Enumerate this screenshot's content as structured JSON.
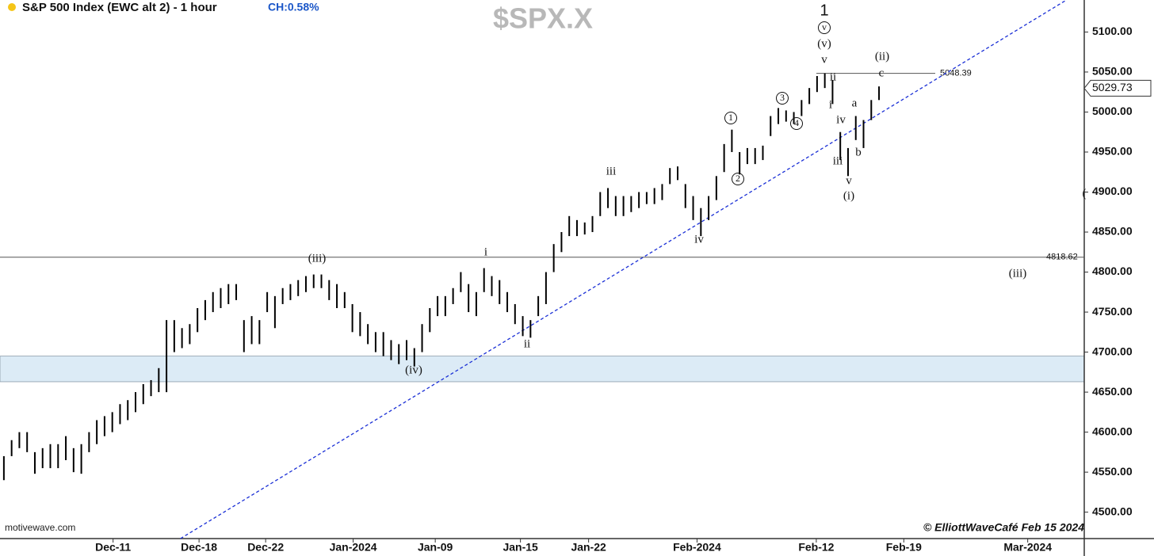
{
  "chart_data": {
    "type": "ohlc",
    "title": "S&P 500 Index (EWC alt 2) - 1 hour",
    "change": "CH:0.58%",
    "symbol": "$SPX.X",
    "source": "motivewave.com",
    "credit": "© ElliottWaveCafé Feb 15 2024",
    "color": "#000000",
    "ylim": [
      4467,
      5140
    ],
    "yticks": [
      {
        "value": 4500,
        "label": "4500.00"
      },
      {
        "value": 4550,
        "label": "4550.00"
      },
      {
        "value": 4600,
        "label": "4600.00"
      },
      {
        "value": 4650,
        "label": "4650.00"
      },
      {
        "value": 4700,
        "label": "4700.00"
      },
      {
        "value": 4750,
        "label": "4750.00"
      },
      {
        "value": 4800,
        "label": "4800.00"
      },
      {
        "value": 4850,
        "label": "4850.00"
      },
      {
        "value": 4900,
        "label": "4900.00"
      },
      {
        "value": 4950,
        "label": "4950.00"
      },
      {
        "value": 5000,
        "label": "5000.00"
      },
      {
        "value": 5050,
        "label": "5050.00"
      },
      {
        "value": 5100,
        "label": "5100.00"
      }
    ],
    "xlim": [
      -0.5,
      139.5
    ],
    "xticks": [
      {
        "value": 14.1,
        "label": "Dec-11"
      },
      {
        "value": 25.2,
        "label": "Dec-18"
      },
      {
        "value": 33.8,
        "label": "Dec-22"
      },
      {
        "value": 45.1,
        "label": "Jan-2024"
      },
      {
        "value": 55.7,
        "label": "Jan-09"
      },
      {
        "value": 66.7,
        "label": "Jan-15"
      },
      {
        "value": 75.5,
        "label": "Jan-22"
      },
      {
        "value": 89.5,
        "label": "Feb-2024"
      },
      {
        "value": 104.9,
        "label": "Feb-12"
      },
      {
        "value": 116.2,
        "label": "Feb-19"
      },
      {
        "value": 132.2,
        "label": "Mar-2024"
      }
    ],
    "lows": [
      4540,
      4570,
      4580,
      4575,
      4548,
      4555,
      4555,
      4555,
      4565,
      4550,
      4548,
      4575,
      4585,
      4595,
      4600,
      4610,
      4615,
      4625,
      4635,
      4645,
      4650,
      4650,
      4700,
      4705,
      4710,
      4725,
      4740,
      4750,
      4755,
      4760,
      4765,
      4700,
      4710,
      4710,
      4750,
      4730,
      4760,
      4765,
      4770,
      4775,
      4780,
      4780,
      4765,
      4755,
      4755,
      4725,
      4720,
      4710,
      4700,
      4695,
      4690,
      4685,
      4690,
      4682,
      4700,
      4725,
      4745,
      4745,
      4760,
      4775,
      4750,
      4745,
      4775,
      4770,
      4760,
      4750,
      4735,
      4720,
      4718,
      4745,
      4760,
      4800,
      4825,
      4845,
      4845,
      4847,
      4850,
      4870,
      4880,
      4870,
      4870,
      4875,
      4880,
      4885,
      4885,
      4890,
      4910,
      4915,
      4880,
      4865,
      4845,
      4865,
      4890,
      4925,
      4950,
      4922,
      4935,
      4935,
      4940,
      4970,
      4985,
      4988,
      4985,
      4995,
      5010,
      5025,
      5030,
      5010,
      4940,
      4920,
      4965,
      4955,
      4990,
      5015
    ],
    "highs": [
      4570,
      4590,
      4600,
      4600,
      4575,
      4580,
      4585,
      4585,
      4595,
      4580,
      4585,
      4600,
      4615,
      4620,
      4625,
      4635,
      4640,
      4650,
      4660,
      4665,
      4680,
      4740,
      4740,
      4730,
      4735,
      4755,
      4765,
      4775,
      4780,
      4785,
      4785,
      4740,
      4745,
      4740,
      4775,
      4770,
      4780,
      4785,
      4790,
      4795,
      4797,
      4797,
      4790,
      4785,
      4775,
      4760,
      4750,
      4735,
      4725,
      4725,
      4715,
      4710,
      4715,
      4705,
      4735,
      4755,
      4770,
      4770,
      4780,
      4800,
      4785,
      4775,
      4805,
      4795,
      4790,
      4775,
      4760,
      4745,
      4740,
      4770,
      4800,
      4835,
      4850,
      4870,
      4865,
      4862,
      4870,
      4900,
      4905,
      4895,
      4895,
      4895,
      4900,
      4900,
      4905,
      4910,
      4930,
      4932,
      4910,
      4895,
      4880,
      4895,
      4920,
      4960,
      4978,
      4950,
      4955,
      4955,
      4958,
      4995,
      5005,
      5002,
      5000,
      5015,
      5030,
      5045,
      5048.39,
      5040,
      4975,
      4955,
      4995,
      4990,
      5015,
      5032
    ],
    "levels": [
      5048.39,
      4818.62
    ],
    "last_price": 5029.73,
    "zone": [
      4663,
      4695
    ],
    "trendline": {
      "x": [
        22.8,
        137.2
      ],
      "y": [
        4467,
        5140
      ]
    },
    "annotations": [
      "1",
      "v",
      "(v)",
      "v",
      "ii",
      "i",
      "(ii)",
      "c",
      "a",
      "iv",
      "b",
      "iii",
      "v",
      "(i)",
      "1",
      "2",
      "3",
      "4",
      "iii",
      "iv",
      "i",
      "ii",
      "(iii)",
      "(iv)",
      "(iii)",
      "("
    ]
  }
}
